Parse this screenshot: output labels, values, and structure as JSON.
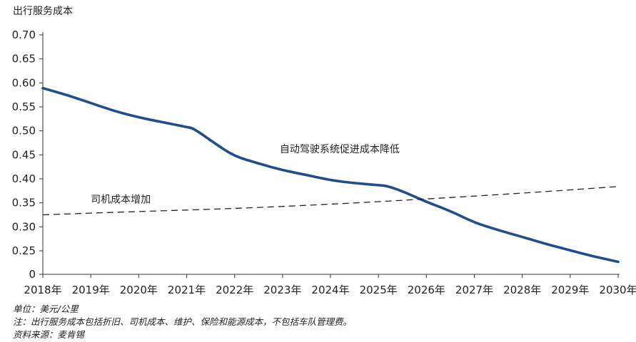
{
  "chart_data": {
    "type": "line",
    "ylabel": "出行服务成本",
    "xlabel": "",
    "ylim": [
      0,
      0.7
    ],
    "yticks": [
      "0",
      "0.25",
      "0.30",
      "0.35",
      "0.40",
      "0.45",
      "0.50",
      "0.55",
      "0.60",
      "0.65",
      "0.70"
    ],
    "categories": [
      "2018年",
      "2019年",
      "2020年",
      "2021年",
      "2022年",
      "2023年",
      "2024年",
      "2025年",
      "2026年",
      "2027年",
      "2028年",
      "2029年",
      "2030年"
    ],
    "axis_break_below": 0.25,
    "grid": false,
    "series": [
      {
        "name": "自动驾驶系统促进成本降低",
        "style": "solid",
        "color": "#1f4e8c",
        "x": [
          2018,
          2018.5,
          2019,
          2019.5,
          2020,
          2020.5,
          2021,
          2021.15,
          2021.6,
          2022,
          2022.5,
          2023,
          2023.5,
          2024,
          2024.5,
          2025,
          2025.2,
          2025.6,
          2026,
          2026.5,
          2027,
          2027.5,
          2028,
          2028.5,
          2029,
          2029.5,
          2030
        ],
        "values": [
          0.589,
          0.575,
          0.558,
          0.541,
          0.528,
          0.518,
          0.508,
          0.505,
          0.473,
          0.447,
          0.432,
          0.418,
          0.408,
          0.397,
          0.391,
          0.387,
          0.385,
          0.37,
          0.352,
          0.333,
          0.309,
          0.293,
          0.279,
          0.264,
          0.251,
          0.238,
          0.227
        ]
      },
      {
        "name": "司机成本增加",
        "style": "dashed",
        "color": "#222222",
        "x": [
          2018,
          2020,
          2022,
          2024,
          2026,
          2028,
          2030
        ],
        "values": [
          0.325,
          0.332,
          0.338,
          0.347,
          0.358,
          0.37,
          0.384
        ]
      }
    ],
    "annotations": [
      {
        "text": "自动驾驶系统促进成本降低",
        "x": 2023.0,
        "y": 0.458
      },
      {
        "text": "司机成本增加",
        "x": 2019.0,
        "y": 0.35
      }
    ]
  },
  "footnotes": {
    "unit": "单位：美元/公里",
    "note": "注：出行服务成本包括折旧、司机成本、维护、保险和能源成本，不包括车队管理费。",
    "source": "资料来源：麦肯锡"
  }
}
